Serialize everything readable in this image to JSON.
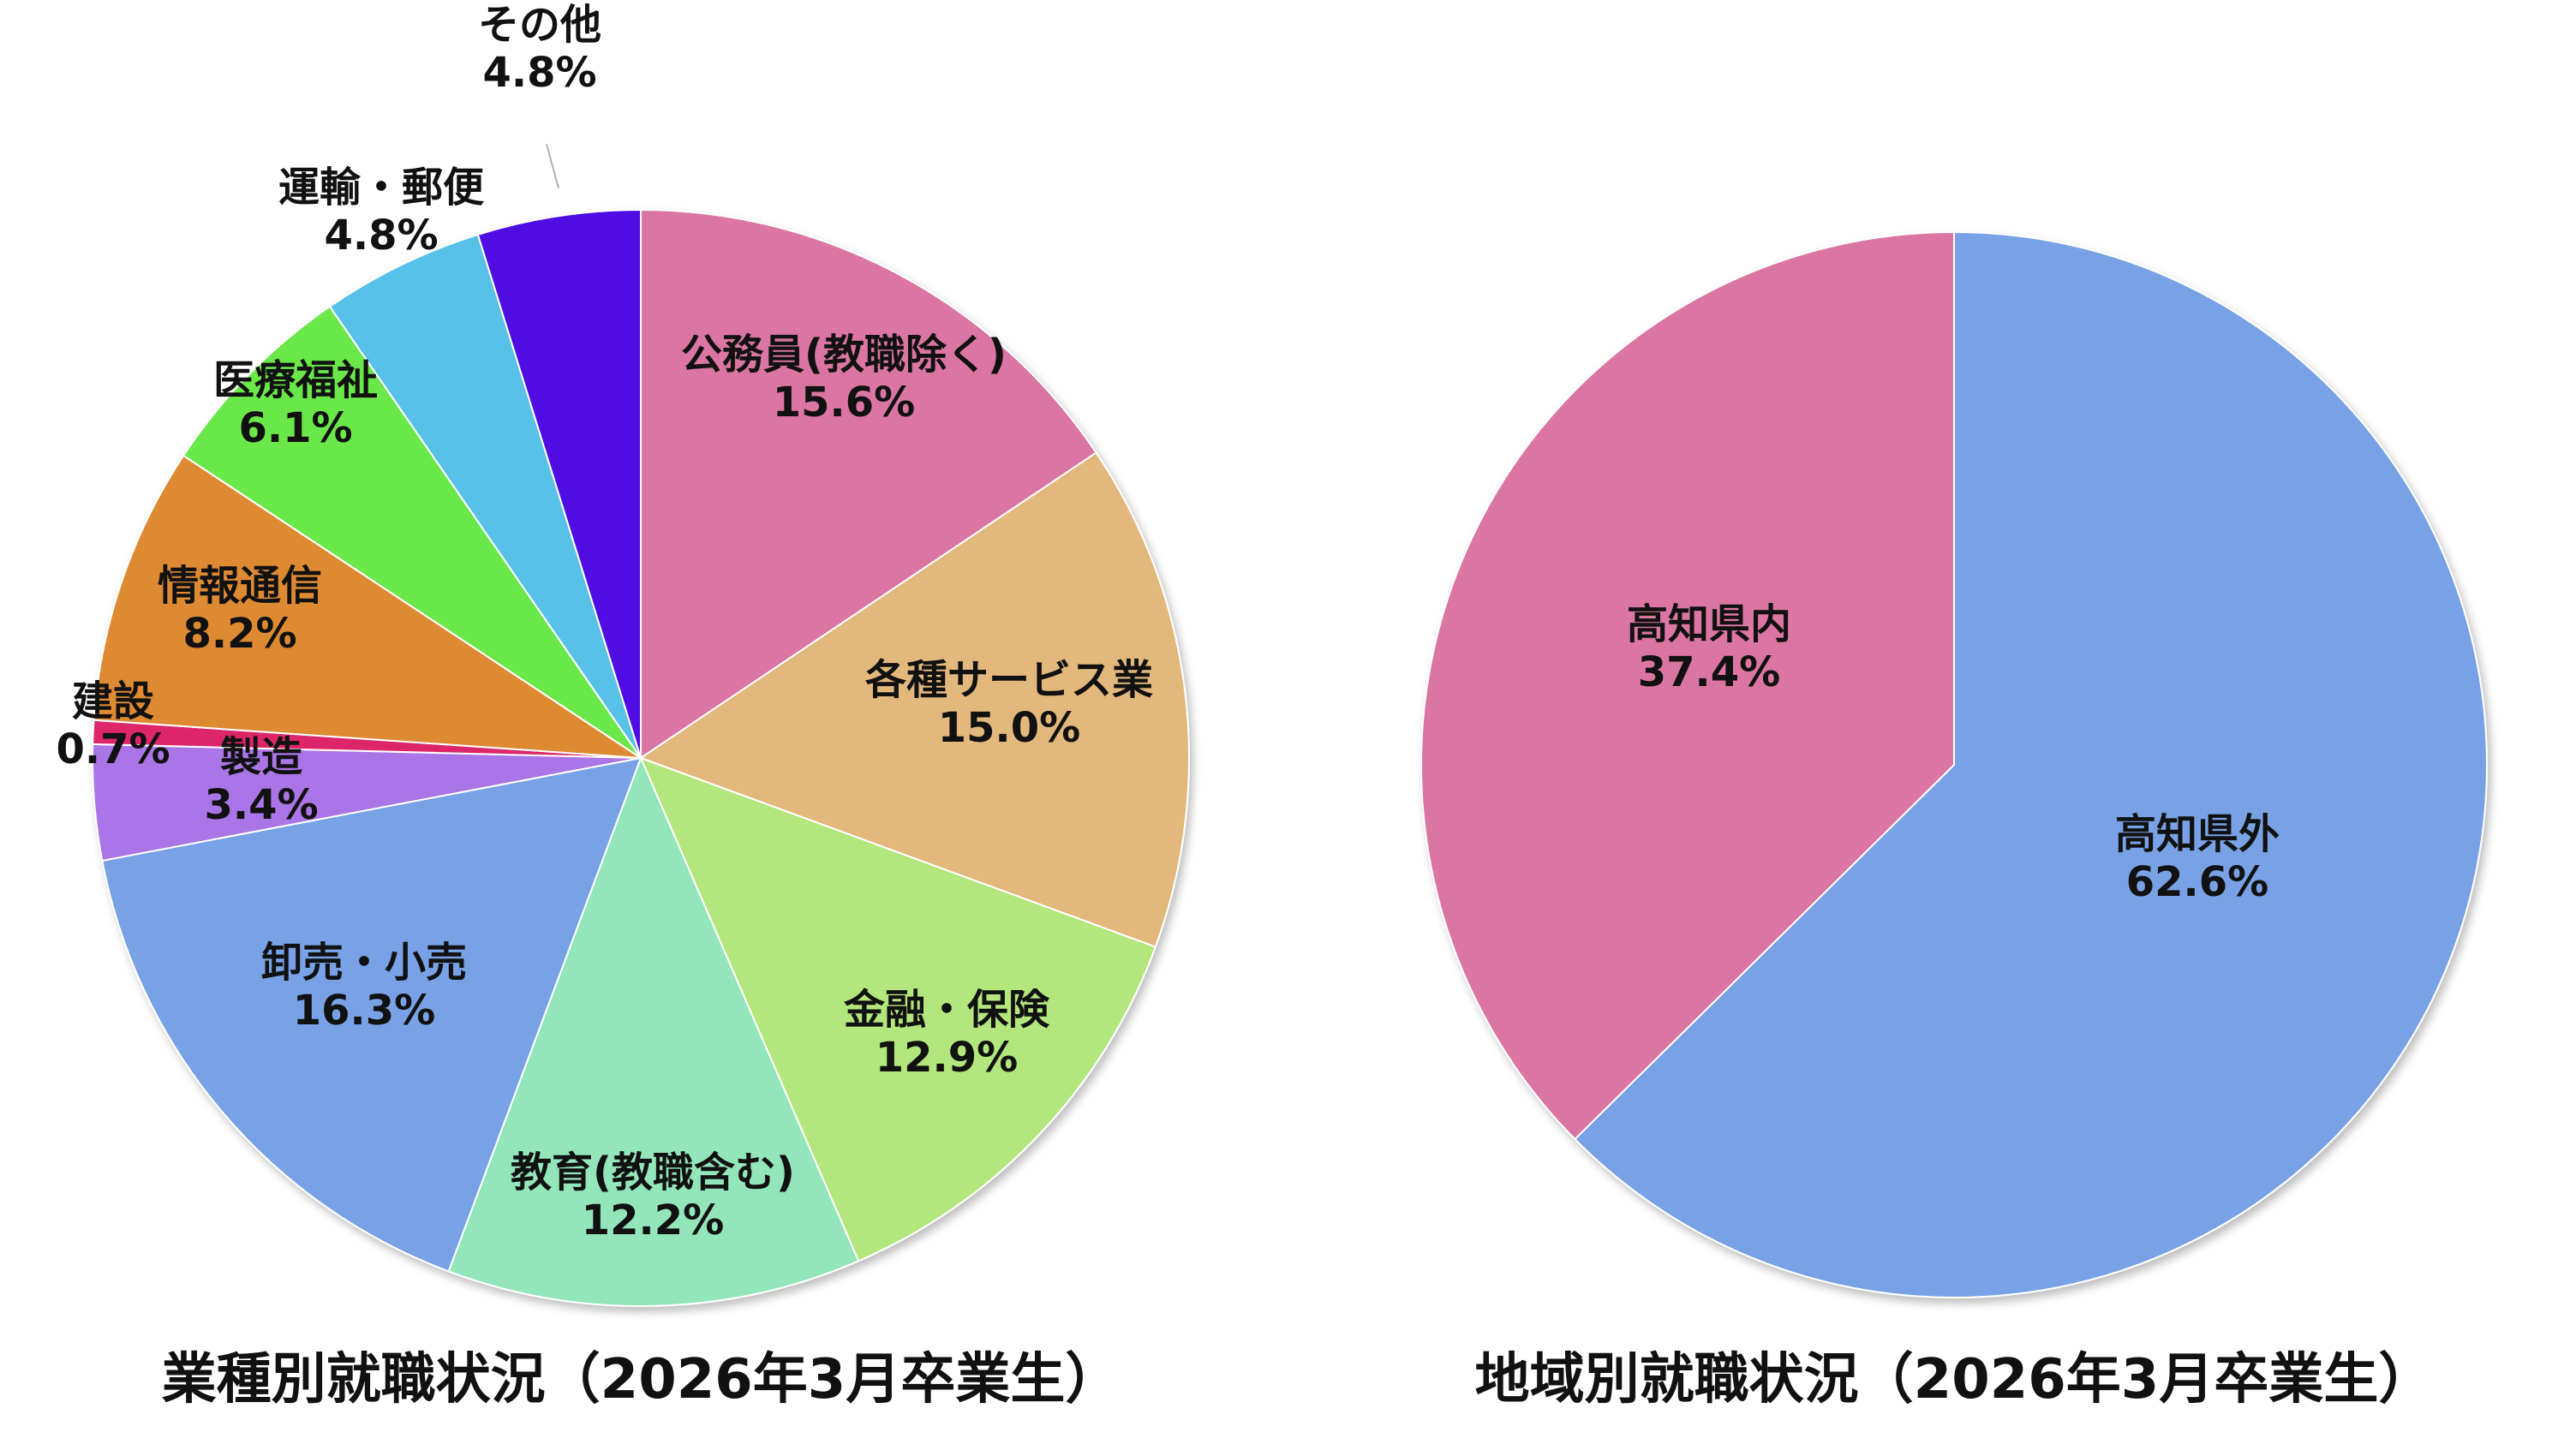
{
  "chart_data": [
    {
      "type": "pie",
      "title": "業種別就職状況（2026年3月卒業生）",
      "start": "top",
      "direction": "clockwise",
      "unit": "%",
      "slices": [
        {
          "label": "公務員(教職除く)",
          "value": 15.6,
          "display": "15.6%",
          "color": "#db75a4"
        },
        {
          "label": "各種サービス業",
          "value": 15.0,
          "display": "15.0%",
          "color": "#e3b87c"
        },
        {
          "label": "金融・保険",
          "value": 12.9,
          "display": "12.9%",
          "color": "#b3e67b"
        },
        {
          "label": "教育(教職含む)",
          "value": 12.2,
          "display": "12.2%",
          "color": "#93e6ba"
        },
        {
          "label": "卸売・小売",
          "value": 16.3,
          "display": "16.3%",
          "color": "#78a2e5"
        },
        {
          "label": "製造",
          "value": 3.4,
          "display": "3.4%",
          "color": "#aa74e6"
        },
        {
          "label": "建設",
          "value": 0.7,
          "display": "0.7%",
          "color": "#dc2869"
        },
        {
          "label": "情報通信",
          "value": 8.2,
          "display": "8.2%",
          "color": "#de8a33"
        },
        {
          "label": "医療福祉",
          "value": 6.1,
          "display": "6.1%",
          "color": "#6be848"
        },
        {
          "label": "運輸・郵便",
          "value": 4.8,
          "display": "4.8%",
          "color": "#59c1e8"
        },
        {
          "label": "その他",
          "value": 4.8,
          "display": "4.8%",
          "color": "#4f0be3"
        }
      ]
    },
    {
      "type": "pie",
      "title": "地域別就職状況（2026年3月卒業生）",
      "start": "top",
      "direction": "clockwise",
      "unit": "%",
      "slices": [
        {
          "label": "高知県外",
          "value": 62.6,
          "display": "62.6%",
          "color": "#78a2e5"
        },
        {
          "label": "高知県内",
          "value": 37.4,
          "display": "37.4%",
          "color": "#db75a4"
        }
      ]
    }
  ]
}
